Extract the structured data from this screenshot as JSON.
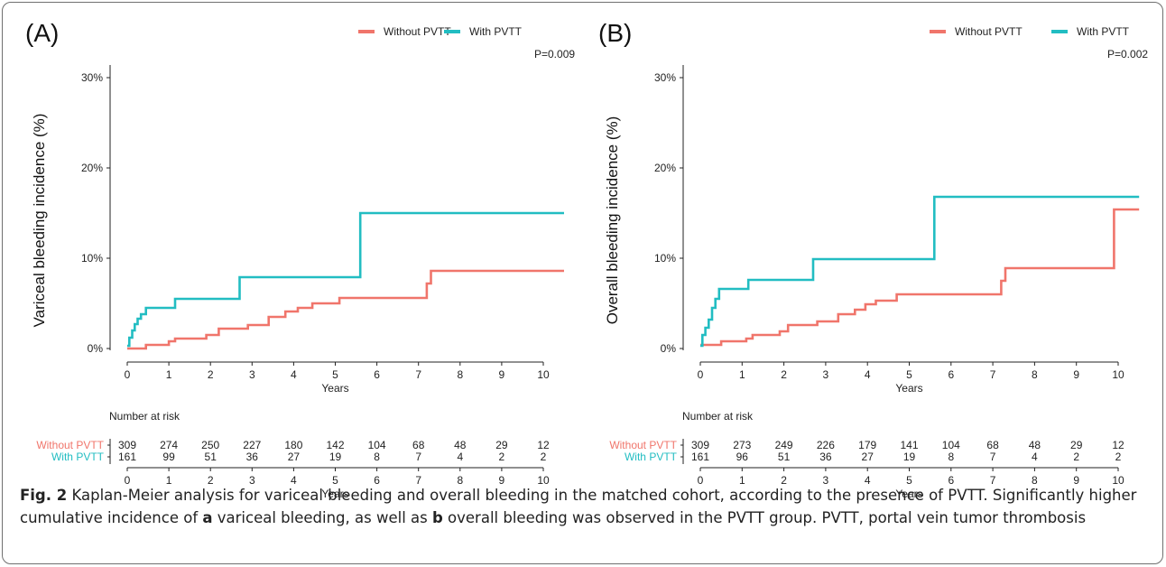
{
  "chart_data": [
    {
      "panel": "(A)",
      "type": "line",
      "ylabel": "Variceal bleeding incidence (%)",
      "xlabel": "Years",
      "p_value": "P=0.009",
      "ylim": [
        0,
        30
      ],
      "xlim": [
        0,
        10.5
      ],
      "yticks": [
        "0%",
        "10%",
        "20%",
        "30%"
      ],
      "xticks": [
        "0",
        "1",
        "2",
        "3",
        "4",
        "5",
        "6",
        "7",
        "8",
        "9",
        "10"
      ],
      "legend_position": "top-right",
      "series": [
        {
          "name": "Without PVTT",
          "color": "#f0756b",
          "points": [
            [
              0,
              0
            ],
            [
              0.45,
              0
            ],
            [
              0.45,
              0.4
            ],
            [
              1,
              0.4
            ],
            [
              1,
              0.8
            ],
            [
              1.15,
              0.8
            ],
            [
              1.15,
              1.1
            ],
            [
              1.9,
              1.1
            ],
            [
              1.9,
              1.5
            ],
            [
              2.2,
              1.5
            ],
            [
              2.2,
              2.2
            ],
            [
              2.9,
              2.2
            ],
            [
              2.9,
              2.6
            ],
            [
              3.4,
              2.6
            ],
            [
              3.4,
              3.5
            ],
            [
              3.8,
              3.5
            ],
            [
              3.8,
              4.1
            ],
            [
              4.1,
              4.1
            ],
            [
              4.1,
              4.5
            ],
            [
              4.45,
              4.5
            ],
            [
              4.45,
              5.0
            ],
            [
              5.1,
              5.0
            ],
            [
              5.1,
              5.6
            ],
            [
              7.2,
              5.6
            ],
            [
              7.2,
              7.2
            ],
            [
              7.3,
              7.2
            ],
            [
              7.3,
              8.6
            ],
            [
              10.5,
              8.6
            ]
          ]
        },
        {
          "name": "With PVTT",
          "color": "#22bdc2",
          "points": [
            [
              0,
              0.3
            ],
            [
              0.05,
              0.3
            ],
            [
              0.05,
              1.2
            ],
            [
              0.12,
              1.2
            ],
            [
              0.12,
              2.0
            ],
            [
              0.18,
              2.0
            ],
            [
              0.18,
              2.7
            ],
            [
              0.25,
              2.7
            ],
            [
              0.25,
              3.3
            ],
            [
              0.33,
              3.3
            ],
            [
              0.33,
              3.8
            ],
            [
              0.45,
              3.8
            ],
            [
              0.45,
              4.5
            ],
            [
              1.15,
              4.5
            ],
            [
              1.15,
              5.5
            ],
            [
              2.7,
              5.5
            ],
            [
              2.7,
              7.9
            ],
            [
              5.6,
              7.9
            ],
            [
              5.6,
              15.0
            ],
            [
              10.5,
              15.0
            ]
          ]
        }
      ],
      "risk_table": {
        "header": "Number at risk",
        "xlabel": "Years",
        "rows": [
          {
            "label": "Without PVTT",
            "color": "#f0756b",
            "values": [
              "309",
              "274",
              "250",
              "227",
              "180",
              "142",
              "104",
              "68",
              "48",
              "29",
              "12"
            ]
          },
          {
            "label": "With PVTT",
            "color": "#22bdc2",
            "values": [
              "161",
              "99",
              "51",
              "36",
              "27",
              "19",
              "8",
              "7",
              "4",
              "2",
              "2"
            ]
          }
        ]
      }
    },
    {
      "panel": "(B)",
      "type": "line",
      "ylabel": "Overall bleeding incidence (%)",
      "xlabel": "Years",
      "p_value": "P=0.002",
      "ylim": [
        0,
        30
      ],
      "xlim": [
        0,
        10.5
      ],
      "yticks": [
        "0%",
        "10%",
        "20%",
        "30%"
      ],
      "xticks": [
        "0",
        "1",
        "2",
        "3",
        "4",
        "5",
        "6",
        "7",
        "8",
        "9",
        "10"
      ],
      "legend_position": "top-right",
      "series": [
        {
          "name": "Without PVTT",
          "color": "#f0756b",
          "points": [
            [
              0,
              0.4
            ],
            [
              0.5,
              0.4
            ],
            [
              0.5,
              0.8
            ],
            [
              1.1,
              0.8
            ],
            [
              1.1,
              1.1
            ],
            [
              1.25,
              1.1
            ],
            [
              1.25,
              1.5
            ],
            [
              1.9,
              1.5
            ],
            [
              1.9,
              1.9
            ],
            [
              2.1,
              1.9
            ],
            [
              2.1,
              2.6
            ],
            [
              2.8,
              2.6
            ],
            [
              2.8,
              3.0
            ],
            [
              3.3,
              3.0
            ],
            [
              3.3,
              3.8
            ],
            [
              3.7,
              3.8
            ],
            [
              3.7,
              4.3
            ],
            [
              3.95,
              4.3
            ],
            [
              3.95,
              4.9
            ],
            [
              4.2,
              4.9
            ],
            [
              4.2,
              5.3
            ],
            [
              4.7,
              5.3
            ],
            [
              4.7,
              6.0
            ],
            [
              7.2,
              6.0
            ],
            [
              7.2,
              7.5
            ],
            [
              7.3,
              7.5
            ],
            [
              7.3,
              8.9
            ],
            [
              9.9,
              8.9
            ],
            [
              9.9,
              15.4
            ],
            [
              10.5,
              15.4
            ]
          ]
        },
        {
          "name": "With PVTT",
          "color": "#22bdc2",
          "points": [
            [
              0,
              0.3
            ],
            [
              0.05,
              0.3
            ],
            [
              0.05,
              1.5
            ],
            [
              0.12,
              1.5
            ],
            [
              0.12,
              2.3
            ],
            [
              0.2,
              2.3
            ],
            [
              0.2,
              3.2
            ],
            [
              0.28,
              3.2
            ],
            [
              0.28,
              4.5
            ],
            [
              0.36,
              4.5
            ],
            [
              0.36,
              5.5
            ],
            [
              0.45,
              5.5
            ],
            [
              0.45,
              6.6
            ],
            [
              1.15,
              6.6
            ],
            [
              1.15,
              7.6
            ],
            [
              2.7,
              7.6
            ],
            [
              2.7,
              9.9
            ],
            [
              5.6,
              9.9
            ],
            [
              5.6,
              16.8
            ],
            [
              10.5,
              16.8
            ]
          ]
        }
      ],
      "risk_table": {
        "header": "Number at risk",
        "xlabel": "Years",
        "rows": [
          {
            "label": "Without PVTT",
            "color": "#f0756b",
            "values": [
              "309",
              "273",
              "249",
              "226",
              "179",
              "141",
              "104",
              "68",
              "48",
              "29",
              "12"
            ]
          },
          {
            "label": "With PVTT",
            "color": "#22bdc2",
            "values": [
              "161",
              "96",
              "51",
              "36",
              "27",
              "19",
              "8",
              "7",
              "4",
              "2",
              "2"
            ]
          }
        ]
      }
    }
  ],
  "caption": {
    "label": "Fig. 2",
    "part1": " Kaplan-Meier analysis for variceal bleeding and overall bleeding in the matched cohort, according to the presence of PVTT. Significantly higher cumulative incidence of ",
    "a": "a",
    "part2": " variceal bleeding, as well as ",
    "b": "b",
    "part3": " overall bleeding was observed in the PVTT group. PVTT, portal vein tumor thrombosis"
  }
}
